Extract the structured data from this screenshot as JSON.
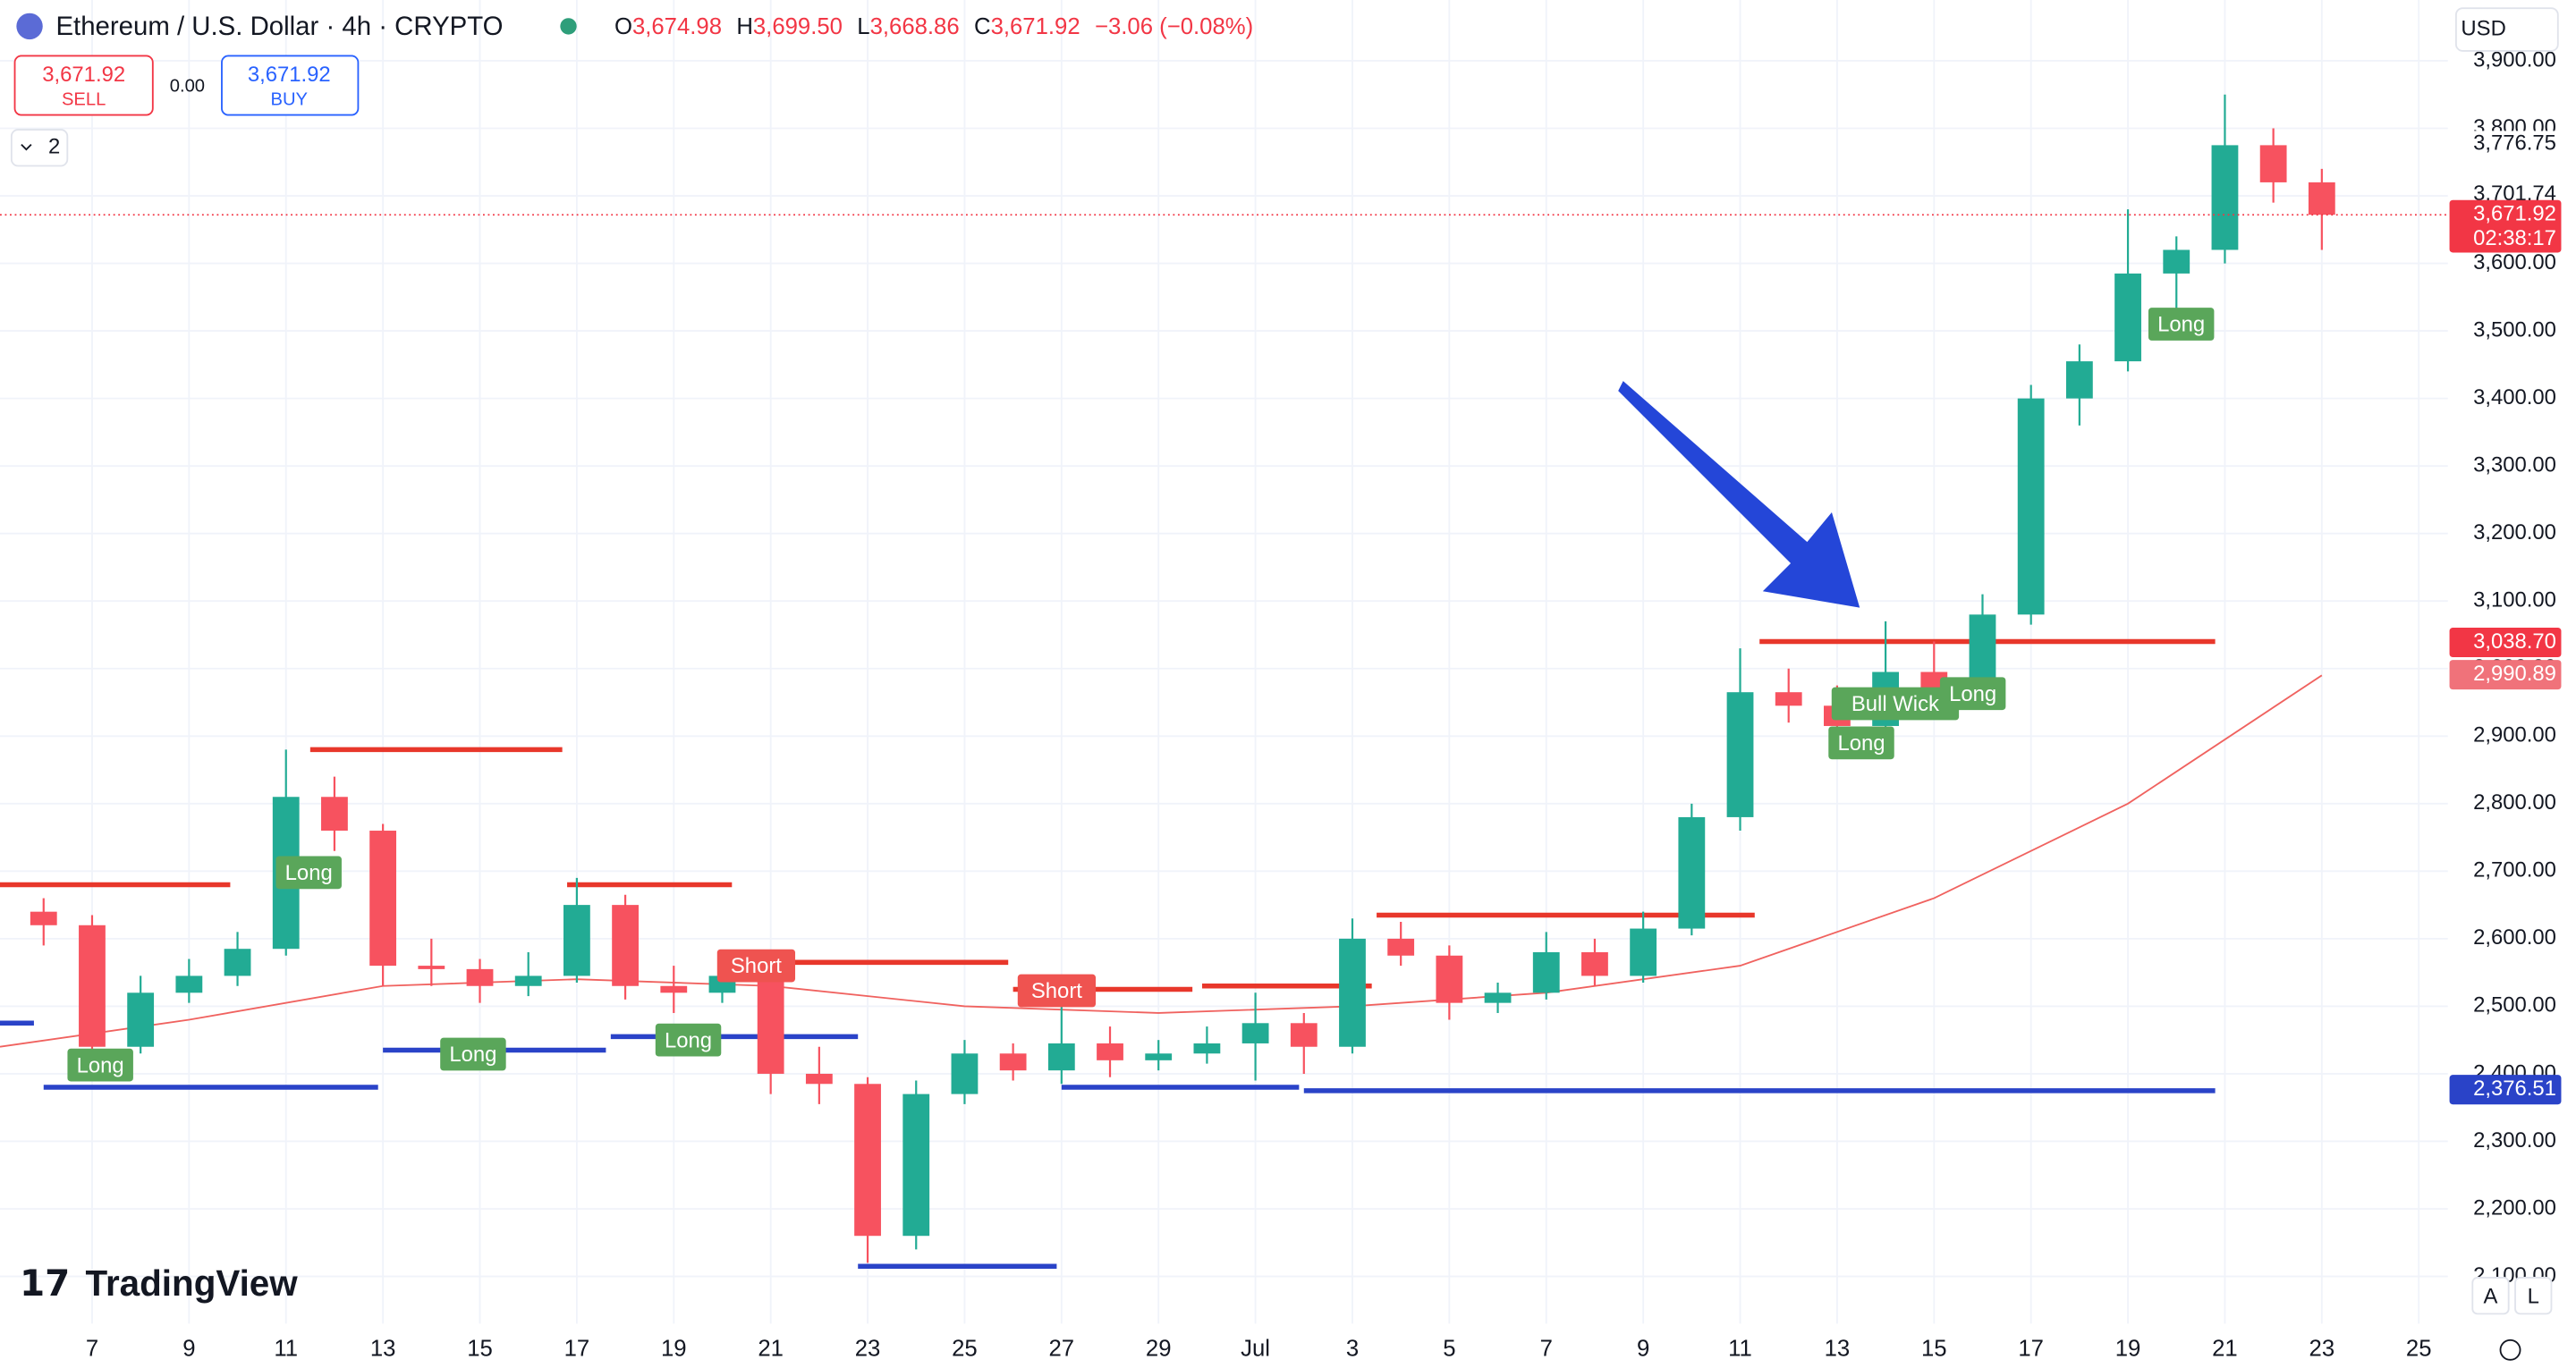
{
  "header": {
    "symbol": "Ethereum / U.S. Dollar · 4h · CRYPTO",
    "ohlc": [
      {
        "key": "O",
        "text": "3,674.98"
      },
      {
        "key": "H",
        "text": "3,699.50"
      },
      {
        "key": "L",
        "text": "3,668.86"
      },
      {
        "key": "C",
        "text": "3,671.92"
      }
    ],
    "change": "−3.06 (−0.08%)",
    "sell": {
      "price": "3,671.92",
      "label": "SELL"
    },
    "spread": "0.00",
    "buy": {
      "price": "3,671.92",
      "label": "BUY"
    },
    "indicators": "2",
    "currency": "USD",
    "brand": "TradingView",
    "buttons": [
      "A",
      "L"
    ]
  },
  "chart_data": {
    "type": "candlestick",
    "up_color": "#22ab94",
    "down_color": "#f7525f",
    "grid": true,
    "xlim": [
      -1.9,
      48.6
    ],
    "ylim": [
      2030,
      3990
    ],
    "xticks": [
      {
        "value": 0,
        "label": "7"
      },
      {
        "value": 2,
        "label": "9"
      },
      {
        "value": 4,
        "label": "11"
      },
      {
        "value": 6,
        "label": "13"
      },
      {
        "value": 8,
        "label": "15"
      },
      {
        "value": 10,
        "label": "17"
      },
      {
        "value": 12,
        "label": "19"
      },
      {
        "value": 14,
        "label": "21"
      },
      {
        "value": 16,
        "label": "23"
      },
      {
        "value": 18,
        "label": "25"
      },
      {
        "value": 20,
        "label": "27"
      },
      {
        "value": 22,
        "label": "29"
      },
      {
        "value": 24,
        "label": "Jul"
      },
      {
        "value": 26,
        "label": "3"
      },
      {
        "value": 28,
        "label": "5"
      },
      {
        "value": 30,
        "label": "7"
      },
      {
        "value": 32,
        "label": "9"
      },
      {
        "value": 34,
        "label": "11"
      },
      {
        "value": 36,
        "label": "13"
      },
      {
        "value": 38,
        "label": "15"
      },
      {
        "value": 40,
        "label": "17"
      },
      {
        "value": 42,
        "label": "19"
      },
      {
        "value": 44,
        "label": "21"
      },
      {
        "value": 46,
        "label": "23"
      },
      {
        "value": 48,
        "label": "25"
      }
    ],
    "yticks": [
      {
        "value": 2100,
        "label": "2,100.00"
      },
      {
        "value": 2200,
        "label": "2,200.00"
      },
      {
        "value": 2300,
        "label": "2,300.00"
      },
      {
        "value": 2400,
        "label": "2,400.00"
      },
      {
        "value": 2500,
        "label": "2,500.00"
      },
      {
        "value": 2600,
        "label": "2,600.00"
      },
      {
        "value": 2700,
        "label": "2,700.00"
      },
      {
        "value": 2800,
        "label": "2,800.00"
      },
      {
        "value": 2900,
        "label": "2,900.00"
      },
      {
        "value": 3000,
        "label": "3,000.00"
      },
      {
        "value": 3100,
        "label": "3,100.00"
      },
      {
        "value": 3200,
        "label": "3,200.00"
      },
      {
        "value": 3300,
        "label": "3,300.00"
      },
      {
        "value": 3400,
        "label": "3,400.00"
      },
      {
        "value": 3500,
        "label": "3,500.00"
      },
      {
        "value": 3600,
        "label": "3,600.00"
      },
      {
        "value": 3700,
        "label": "3,700.00"
      },
      {
        "value": 3800,
        "label": "3,800.00"
      },
      {
        "value": 3900,
        "label": "3,900.00"
      }
    ],
    "x": [
      -1,
      0,
      1,
      2,
      3,
      4,
      5,
      6,
      7,
      8,
      9,
      10,
      11,
      12,
      13,
      14,
      15,
      16,
      17,
      18,
      19,
      20,
      21,
      22,
      23,
      24,
      25,
      26,
      27,
      28,
      29,
      30,
      31,
      32,
      33,
      34,
      35,
      36,
      37,
      38,
      39,
      40,
      41,
      42,
      43,
      44,
      45,
      46
    ],
    "open": [
      2640,
      2620,
      2440,
      2520,
      2545,
      2585,
      2810,
      2760,
      2560,
      2555,
      2530,
      2545,
      2650,
      2530,
      2520,
      2545,
      2400,
      2385,
      2160,
      2370,
      2430,
      2405,
      2445,
      2420,
      2430,
      2445,
      2475,
      2440,
      2600,
      2575,
      2505,
      2520,
      2580,
      2545,
      2615,
      2780,
      2965,
      2945,
      2915,
      2995,
      2965,
      3080,
      3400,
      3455,
      3585,
      3620,
      3775,
      3720
    ],
    "high": [
      2660,
      2635,
      2545,
      2570,
      2610,
      2880,
      2840,
      2770,
      2600,
      2570,
      2580,
      2690,
      2665,
      2560,
      2580,
      2560,
      2440,
      2395,
      2390,
      2450,
      2445,
      2520,
      2470,
      2450,
      2470,
      2520,
      2490,
      2630,
      2625,
      2590,
      2535,
      2610,
      2600,
      2640,
      2800,
      3030,
      3000,
      2975,
      3070,
      3040,
      3110,
      3420,
      3480,
      3680,
      3640,
      3850,
      3800,
      3740
    ],
    "low": [
      2590,
      2400,
      2430,
      2505,
      2530,
      2575,
      2730,
      2530,
      2530,
      2505,
      2515,
      2535,
      2510,
      2490,
      2505,
      2370,
      2355,
      2120,
      2140,
      2355,
      2390,
      2385,
      2395,
      2405,
      2415,
      2390,
      2400,
      2430,
      2560,
      2480,
      2490,
      2510,
      2530,
      2535,
      2605,
      2760,
      2920,
      2890,
      2905,
      2940,
      2955,
      3065,
      3360,
      3440,
      3490,
      3600,
      3690,
      3620
    ],
    "close": [
      2620,
      2440,
      2520,
      2545,
      2585,
      2810,
      2760,
      2560,
      2555,
      2530,
      2545,
      2650,
      2530,
      2520,
      2545,
      2400,
      2385,
      2160,
      2370,
      2430,
      2405,
      2445,
      2420,
      2430,
      2445,
      2475,
      2440,
      2600,
      2575,
      2505,
      2520,
      2580,
      2545,
      2615,
      2780,
      2965,
      2945,
      2915,
      2995,
      2965,
      3080,
      3400,
      3455,
      3585,
      3620,
      3775,
      3720,
      3672
    ],
    "ma": {
      "color": "#f0625f",
      "x": [
        -1.9,
        2,
        6,
        10,
        14,
        18,
        22,
        26,
        30,
        34,
        38,
        42,
        46
      ],
      "values": [
        2440,
        2480,
        2530,
        2540,
        2530,
        2500,
        2490,
        2500,
        2520,
        2560,
        2660,
        2800,
        2990
      ]
    },
    "levels": [
      {
        "color": "#e8372b",
        "x": [
          -1.9,
          2.85
        ],
        "value": 2680
      },
      {
        "color": "#e8372b",
        "x": [
          4.5,
          9.7
        ],
        "value": 2880
      },
      {
        "color": "#e8372b",
        "x": [
          9.8,
          13.2
        ],
        "value": 2680
      },
      {
        "color": "#e8372b",
        "x": [
          13.6,
          18.9
        ],
        "value": 2565
      },
      {
        "color": "#e8372b",
        "x": [
          19,
          22.7
        ],
        "value": 2525
      },
      {
        "color": "#e8372b",
        "x": [
          22.9,
          26.4
        ],
        "value": 2530
      },
      {
        "color": "#e8372b",
        "x": [
          26.5,
          34.3
        ],
        "value": 2635
      },
      {
        "color": "#e8372b",
        "x": [
          34.4,
          43.8
        ],
        "value": 3040
      },
      {
        "color": "#2a43c8",
        "x": [
          -1.9,
          -1.2
        ],
        "value": 2475
      },
      {
        "color": "#2a43c8",
        "x": [
          -1,
          5.9
        ],
        "value": 2380
      },
      {
        "color": "#2a43c8",
        "x": [
          6,
          10.6
        ],
        "value": 2435
      },
      {
        "color": "#2a43c8",
        "x": [
          10.7,
          15.8
        ],
        "value": 2455
      },
      {
        "color": "#2a43c8",
        "x": [
          15.8,
          19.9
        ],
        "value": 2115
      },
      {
        "color": "#2a43c8",
        "x": [
          20,
          24.9
        ],
        "value": 2380
      },
      {
        "color": "#2a43c8",
        "x": [
          25,
          43.8
        ],
        "value": 2375
      }
    ],
    "signals": [
      {
        "text": "Long",
        "color": "#5aa65a",
        "x": 0.17,
        "y": 2413
      },
      {
        "text": "Long",
        "color": "#5aa65a",
        "x": 4.47,
        "y": 2698
      },
      {
        "text": "Long",
        "color": "#5aa65a",
        "x": 7.86,
        "y": 2429
      },
      {
        "text": "Long",
        "color": "#5aa65a",
        "x": 12.3,
        "y": 2450
      },
      {
        "text": "Short",
        "color": "#ef5350",
        "x": 13.7,
        "y": 2560
      },
      {
        "text": "Short",
        "color": "#ef5350",
        "x": 19.9,
        "y": 2523
      },
      {
        "text": "Long",
        "color": "#5aa65a",
        "x": 36.5,
        "y": 2890
      },
      {
        "text": "Bull Wick",
        "color": "#5aa65a",
        "x": 37.2,
        "y": 2948
      },
      {
        "text": "Long",
        "color": "#5aa65a",
        "x": 38.8,
        "y": 2963
      },
      {
        "text": "Long",
        "color": "#5aa65a",
        "x": 43.1,
        "y": 3510
      }
    ],
    "price_labels": [
      {
        "value": 3776.75,
        "label": "3,776.75",
        "color": null
      },
      {
        "value": 3701.74,
        "label": "3,701.74",
        "color": null
      },
      {
        "value": 3671.92,
        "label": "3,671.92",
        "sub": "02:38:17",
        "color": "#f23645"
      },
      {
        "value": 3038.7,
        "label": "3,038.70",
        "color": "#f23645"
      },
      {
        "value": 2990.89,
        "label": "2,990.89",
        "color": "#f0727a"
      },
      {
        "value": 2376.51,
        "label": "2,376.51",
        "color": "#2a43c8"
      }
    ],
    "last_price": 3671.92
  }
}
